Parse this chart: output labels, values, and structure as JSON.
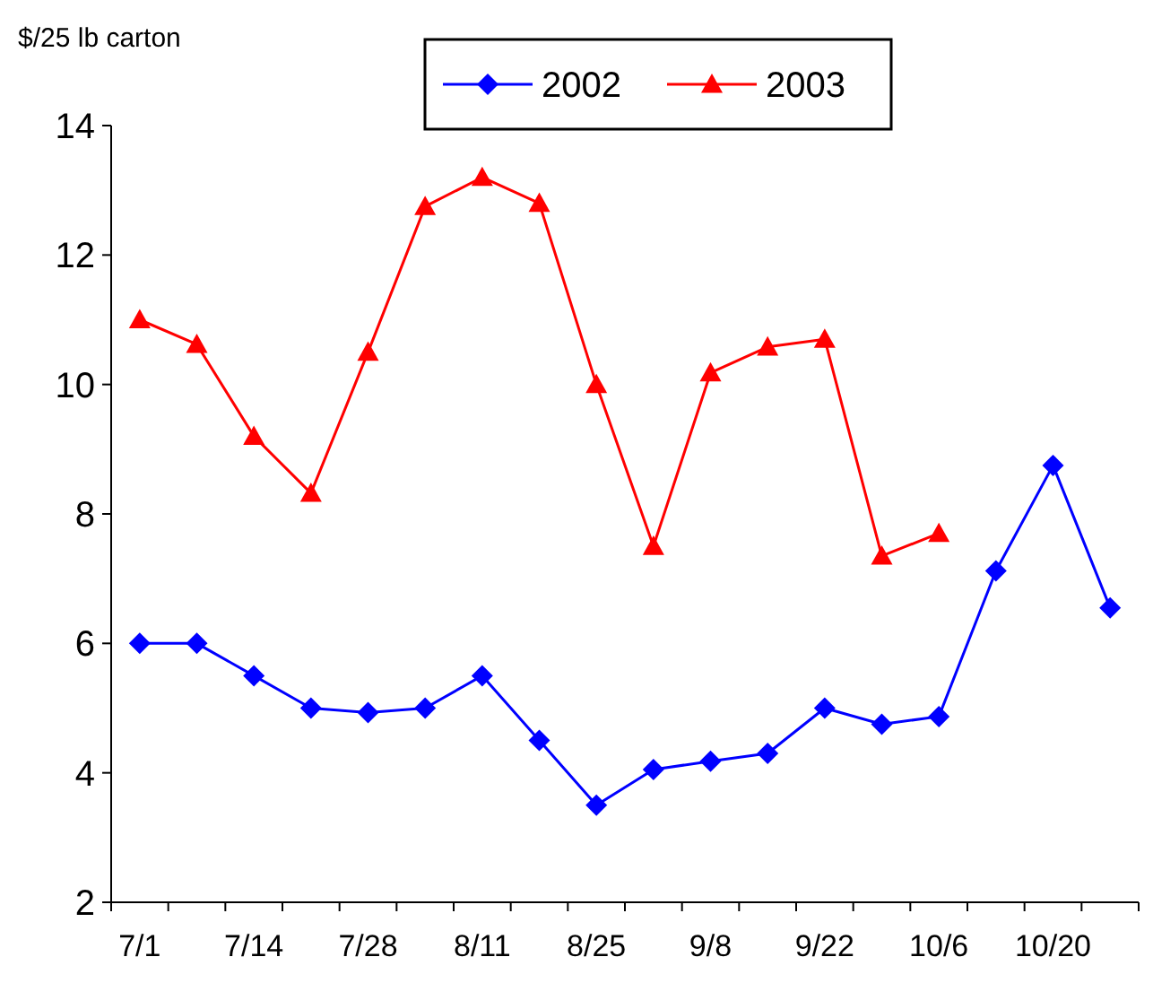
{
  "chart_data": {
    "type": "line",
    "ylabel": "$/25 lb carton",
    "categories": [
      "7/1",
      null,
      "7/14",
      null,
      "7/28",
      null,
      "8/11",
      null,
      "8/25",
      null,
      "9/8",
      null,
      "9/22",
      null,
      "10/6",
      null,
      "10/20",
      null
    ],
    "series": [
      {
        "name": "2002",
        "color": "#0000ff",
        "marker": "diamond",
        "values": [
          6.0,
          6.0,
          5.5,
          5.0,
          4.93,
          5.0,
          5.5,
          4.5,
          3.5,
          4.05,
          4.18,
          4.3,
          5.0,
          4.75,
          4.87,
          7.12,
          8.75,
          6.55
        ]
      },
      {
        "name": "2003",
        "color": "#ff0000",
        "marker": "triangle",
        "values": [
          11.0,
          10.62,
          9.2,
          8.32,
          10.5,
          12.75,
          13.2,
          12.8,
          10.0,
          7.5,
          10.18,
          10.58,
          10.7,
          7.35,
          7.7,
          null,
          null,
          null
        ]
      }
    ],
    "ylim": [
      2,
      14
    ],
    "yticks": [
      2,
      4,
      6,
      8,
      10,
      12,
      14
    ],
    "grid": false,
    "legend": "top",
    "line_style": "solid"
  }
}
